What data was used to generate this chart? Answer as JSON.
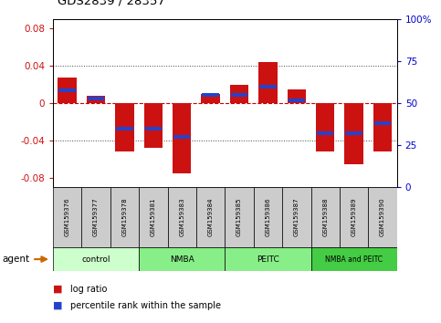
{
  "title": "GDS2839 / 28357",
  "samples": [
    "GSM159376",
    "GSM159377",
    "GSM159378",
    "GSM159381",
    "GSM159383",
    "GSM159384",
    "GSM159385",
    "GSM159386",
    "GSM159387",
    "GSM159388",
    "GSM159389",
    "GSM159390"
  ],
  "log_ratio": [
    0.028,
    0.008,
    -0.052,
    -0.048,
    -0.075,
    0.01,
    0.02,
    0.044,
    0.015,
    -0.052,
    -0.065,
    -0.052
  ],
  "percentile": [
    58,
    53,
    35,
    35,
    30,
    55,
    55,
    60,
    52,
    32,
    32,
    38
  ],
  "ylim": [
    -0.09,
    0.09
  ],
  "yticks_left": [
    -0.08,
    -0.04,
    0.0,
    0.04,
    0.08
  ],
  "yticks_right": [
    0,
    25,
    50,
    75,
    100
  ],
  "bar_color_red": "#cc1111",
  "bar_color_blue": "#2244cc",
  "bar_width": 0.65,
  "tick_label_color_left": "#cc1111",
  "tick_label_color_right": "#0000cc",
  "zero_line_color": "#cc0000",
  "groups": [
    {
      "label": "control",
      "start": 0,
      "end": 3,
      "color": "#ccffcc"
    },
    {
      "label": "NMBA",
      "start": 3,
      "end": 6,
      "color": "#88ee88"
    },
    {
      "label": "PEITC",
      "start": 6,
      "end": 9,
      "color": "#88ee88"
    },
    {
      "label": "NMBA and PEITC",
      "start": 9,
      "end": 12,
      "color": "#44cc44"
    }
  ],
  "sample_box_color": "#cccccc",
  "agent_label": "agent",
  "agent_arrow_color": "#cc6600"
}
